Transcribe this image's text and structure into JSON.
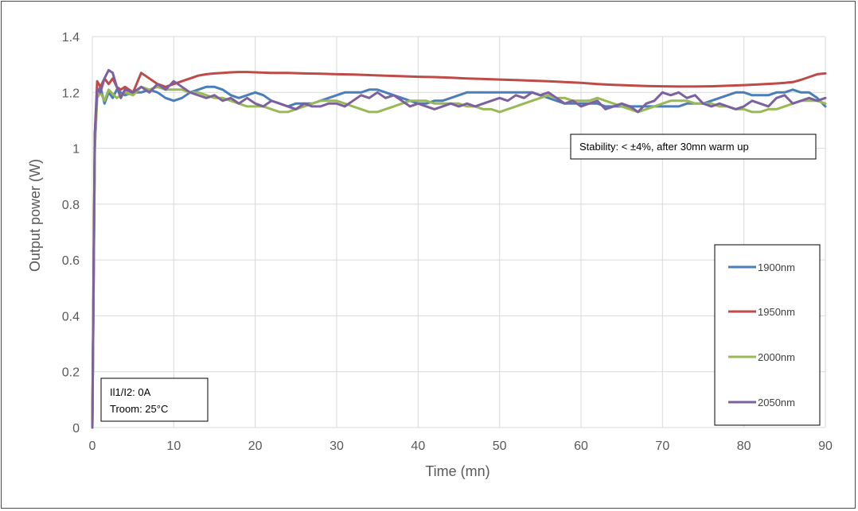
{
  "chart_data": {
    "type": "line",
    "title": "",
    "xlabel": "Time (mn)",
    "ylabel": "Output power (W)",
    "xlim": [
      0,
      90
    ],
    "ylim": [
      0,
      1.4
    ],
    "xticks": [
      "0",
      "10",
      "20",
      "30",
      "40",
      "50",
      "60",
      "70",
      "80",
      "90"
    ],
    "yticks": [
      "0",
      "0.2",
      "0.4",
      "0.6",
      "0.8",
      "1",
      "1.2",
      "1.4"
    ],
    "grid": true,
    "legend_position": "right-bottom",
    "annotations": {
      "stability": "Stability: < ±4%, after 30mn warm up",
      "conditions_line1": "Il1/I2: 0A",
      "conditions_line2": "Troom: 25°C"
    },
    "series": [
      {
        "name": "1900nm",
        "color": "#4a7ebb",
        "x": [
          0,
          0.3,
          0.6,
          1,
          1.5,
          2,
          2.5,
          3,
          4,
          5,
          6,
          7,
          8,
          9,
          10,
          11,
          12,
          13,
          14,
          15,
          16,
          17,
          18,
          19,
          20,
          21,
          22,
          23,
          24,
          25,
          26,
          27,
          28,
          29,
          30,
          31,
          32,
          33,
          34,
          35,
          36,
          37,
          38,
          39,
          40,
          41,
          42,
          43,
          44,
          45,
          46,
          47,
          48,
          49,
          50,
          51,
          52,
          53,
          54,
          55,
          56,
          57,
          58,
          59,
          60,
          61,
          62,
          63,
          64,
          65,
          66,
          67,
          68,
          69,
          70,
          71,
          72,
          73,
          74,
          75,
          76,
          77,
          78,
          79,
          80,
          81,
          82,
          83,
          84,
          85,
          86,
          87,
          88,
          89,
          90
        ],
        "values": [
          0,
          1.0,
          1.2,
          1.22,
          1.16,
          1.2,
          1.18,
          1.21,
          1.19,
          1.2,
          1.2,
          1.21,
          1.2,
          1.18,
          1.17,
          1.18,
          1.2,
          1.21,
          1.22,
          1.22,
          1.21,
          1.19,
          1.18,
          1.19,
          1.2,
          1.19,
          1.17,
          1.16,
          1.15,
          1.16,
          1.16,
          1.16,
          1.17,
          1.18,
          1.19,
          1.2,
          1.2,
          1.2,
          1.21,
          1.21,
          1.2,
          1.19,
          1.18,
          1.17,
          1.16,
          1.16,
          1.17,
          1.17,
          1.18,
          1.19,
          1.2,
          1.2,
          1.2,
          1.2,
          1.2,
          1.2,
          1.2,
          1.2,
          1.2,
          1.19,
          1.18,
          1.17,
          1.16,
          1.16,
          1.16,
          1.16,
          1.16,
          1.15,
          1.15,
          1.15,
          1.15,
          1.15,
          1.15,
          1.15,
          1.15,
          1.15,
          1.15,
          1.16,
          1.16,
          1.16,
          1.17,
          1.18,
          1.19,
          1.2,
          1.2,
          1.19,
          1.19,
          1.19,
          1.2,
          1.2,
          1.21,
          1.2,
          1.2,
          1.18,
          1.15
        ]
      },
      {
        "name": "1950nm",
        "color": "#be4b48",
        "x": [
          0,
          0.3,
          0.6,
          1,
          1.5,
          2,
          2.5,
          3,
          3.5,
          4,
          5,
          6,
          7,
          8,
          9,
          10,
          11,
          12,
          13,
          14,
          15,
          16,
          17,
          18,
          19,
          20,
          22,
          24,
          26,
          28,
          30,
          32,
          34,
          36,
          38,
          40,
          42,
          44,
          46,
          48,
          50,
          52,
          54,
          56,
          58,
          60,
          62,
          64,
          66,
          68,
          70,
          72,
          74,
          76,
          78,
          80,
          82,
          84,
          85,
          86,
          87,
          88,
          89,
          90
        ],
        "values": [
          0,
          1.05,
          1.24,
          1.22,
          1.25,
          1.23,
          1.25,
          1.22,
          1.21,
          1.22,
          1.2,
          1.27,
          1.25,
          1.23,
          1.22,
          1.23,
          1.24,
          1.25,
          1.26,
          1.265,
          1.268,
          1.27,
          1.272,
          1.273,
          1.273,
          1.272,
          1.27,
          1.27,
          1.268,
          1.267,
          1.265,
          1.264,
          1.262,
          1.26,
          1.258,
          1.256,
          1.255,
          1.253,
          1.25,
          1.248,
          1.246,
          1.244,
          1.242,
          1.24,
          1.237,
          1.234,
          1.23,
          1.227,
          1.225,
          1.223,
          1.222,
          1.221,
          1.221,
          1.222,
          1.224,
          1.226,
          1.229,
          1.232,
          1.234,
          1.237,
          1.245,
          1.255,
          1.265,
          1.268
        ]
      },
      {
        "name": "2000nm",
        "color": "#98b954",
        "x": [
          0,
          0.3,
          0.6,
          1,
          1.5,
          2,
          3,
          4,
          5,
          6,
          7,
          8,
          9,
          10,
          11,
          12,
          13,
          14,
          15,
          16,
          17,
          18,
          19,
          20,
          21,
          22,
          23,
          24,
          25,
          26,
          27,
          28,
          29,
          30,
          31,
          32,
          33,
          34,
          35,
          36,
          37,
          38,
          39,
          40,
          41,
          42,
          43,
          44,
          45,
          46,
          47,
          48,
          49,
          50,
          51,
          52,
          53,
          54,
          55,
          56,
          57,
          58,
          59,
          60,
          61,
          62,
          63,
          64,
          65,
          66,
          67,
          68,
          69,
          70,
          71,
          72,
          73,
          74,
          75,
          76,
          77,
          78,
          79,
          80,
          81,
          82,
          83,
          84,
          85,
          86,
          87,
          88,
          89,
          90
        ],
        "values": [
          0,
          1.0,
          1.18,
          1.2,
          1.17,
          1.21,
          1.18,
          1.2,
          1.19,
          1.22,
          1.21,
          1.22,
          1.21,
          1.21,
          1.21,
          1.2,
          1.2,
          1.19,
          1.18,
          1.18,
          1.17,
          1.16,
          1.15,
          1.15,
          1.15,
          1.14,
          1.13,
          1.13,
          1.14,
          1.15,
          1.16,
          1.17,
          1.17,
          1.17,
          1.16,
          1.15,
          1.14,
          1.13,
          1.13,
          1.14,
          1.15,
          1.16,
          1.17,
          1.17,
          1.17,
          1.16,
          1.16,
          1.16,
          1.16,
          1.15,
          1.15,
          1.14,
          1.14,
          1.13,
          1.14,
          1.15,
          1.16,
          1.17,
          1.18,
          1.19,
          1.18,
          1.18,
          1.17,
          1.17,
          1.17,
          1.18,
          1.17,
          1.16,
          1.15,
          1.14,
          1.13,
          1.14,
          1.15,
          1.16,
          1.17,
          1.17,
          1.17,
          1.16,
          1.16,
          1.16,
          1.15,
          1.15,
          1.14,
          1.14,
          1.13,
          1.13,
          1.14,
          1.14,
          1.15,
          1.16,
          1.17,
          1.17,
          1.17,
          1.16
        ]
      },
      {
        "name": "2050nm",
        "color": "#7d60a0",
        "x": [
          0,
          0.3,
          0.6,
          1,
          1.5,
          2,
          2.5,
          3,
          3.5,
          4,
          5,
          6,
          7,
          8,
          9,
          10,
          11,
          12,
          13,
          14,
          15,
          16,
          17,
          18,
          19,
          20,
          21,
          22,
          23,
          24,
          25,
          26,
          27,
          28,
          29,
          30,
          31,
          32,
          33,
          34,
          35,
          36,
          37,
          38,
          39,
          40,
          41,
          42,
          43,
          44,
          45,
          46,
          47,
          48,
          49,
          50,
          51,
          52,
          53,
          54,
          55,
          56,
          57,
          58,
          59,
          60,
          61,
          62,
          63,
          64,
          65,
          66,
          67,
          68,
          69,
          70,
          71,
          72,
          73,
          74,
          75,
          76,
          77,
          78,
          79,
          80,
          81,
          82,
          83,
          84,
          85,
          86,
          87,
          88,
          89,
          90
        ],
        "values": [
          0,
          1.05,
          1.21,
          1.2,
          1.25,
          1.28,
          1.27,
          1.22,
          1.18,
          1.21,
          1.2,
          1.22,
          1.2,
          1.23,
          1.21,
          1.24,
          1.22,
          1.2,
          1.19,
          1.18,
          1.19,
          1.17,
          1.18,
          1.16,
          1.18,
          1.16,
          1.15,
          1.17,
          1.16,
          1.15,
          1.14,
          1.16,
          1.15,
          1.15,
          1.16,
          1.16,
          1.15,
          1.17,
          1.19,
          1.18,
          1.2,
          1.18,
          1.19,
          1.17,
          1.15,
          1.16,
          1.15,
          1.14,
          1.15,
          1.16,
          1.15,
          1.16,
          1.15,
          1.16,
          1.17,
          1.18,
          1.17,
          1.19,
          1.18,
          1.2,
          1.19,
          1.2,
          1.18,
          1.16,
          1.17,
          1.15,
          1.16,
          1.17,
          1.14,
          1.15,
          1.16,
          1.15,
          1.13,
          1.16,
          1.17,
          1.2,
          1.19,
          1.2,
          1.18,
          1.19,
          1.16,
          1.15,
          1.16,
          1.15,
          1.14,
          1.15,
          1.17,
          1.16,
          1.15,
          1.18,
          1.19,
          1.16,
          1.17,
          1.18,
          1.17,
          1.18
        ]
      }
    ]
  }
}
